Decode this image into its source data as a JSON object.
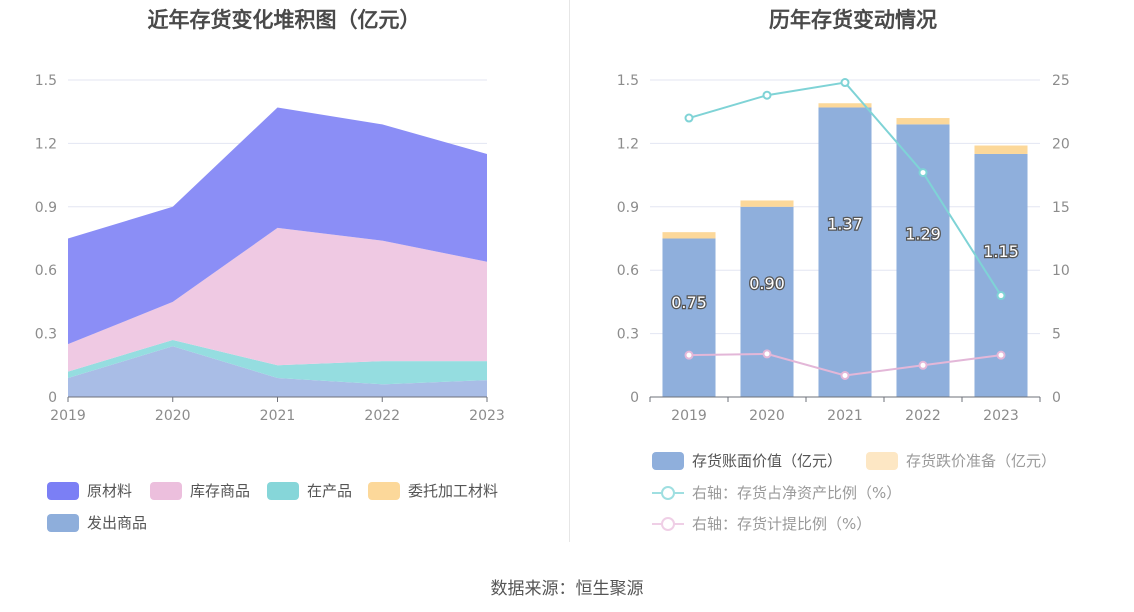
{
  "left_chart": {
    "title": "近年存货变化堆积图（亿元）",
    "legend": [
      "原材料",
      "库存商品",
      "在产品",
      "委托加工材料",
      "发出商品"
    ],
    "colors": {
      "原材料": "#8b8ef6",
      "库存商品": "#efc9e3",
      "在产品": "#95dde0",
      "委托加工材料": "#fcd89a",
      "发出商品": "#a9bde6"
    }
  },
  "right_chart": {
    "title": "历年存货变动情况",
    "legend": [
      "存货账面价值（亿元）",
      "存货跌价准备（亿元）",
      "右轴：存货占净资产比例（%）",
      "右轴：存货计提比例（%）"
    ],
    "colors": {
      "book": "#8fafdc",
      "provision": "#fcd89a",
      "ratio_net_assets": "#7fd3d6",
      "provision_ratio": "#e3b7d8"
    }
  },
  "chart_data": [
    {
      "type": "area",
      "title": "近年存货变化堆积图（亿元）",
      "stacked": true,
      "categories": [
        "2019",
        "2020",
        "2021",
        "2022",
        "2023"
      ],
      "ylim": [
        0,
        1.5
      ],
      "yticks": [
        "0",
        "0.3",
        "0.6",
        "0.9",
        "1.2",
        "1.5"
      ],
      "series": [
        {
          "name": "发出商品",
          "values": [
            0.09,
            0.24,
            0.09,
            0.06,
            0.08
          ]
        },
        {
          "name": "委托加工材料",
          "values": [
            0.0,
            0.0,
            0.0,
            0.0,
            0.0
          ]
        },
        {
          "name": "在产品",
          "values": [
            0.03,
            0.03,
            0.06,
            0.11,
            0.09
          ]
        },
        {
          "name": "库存商品",
          "values": [
            0.13,
            0.18,
            0.65,
            0.57,
            0.47
          ]
        },
        {
          "name": "原材料",
          "values": [
            0.5,
            0.45,
            0.57,
            0.55,
            0.51
          ]
        }
      ],
      "legend_position": "bottom",
      "grid": true
    },
    {
      "type": "bar",
      "title": "历年存货变动情况",
      "categories": [
        "2019",
        "2020",
        "2021",
        "2022",
        "2023"
      ],
      "ylim": [
        0,
        1.5
      ],
      "yticks": [
        "0",
        "0.3",
        "0.6",
        "0.9",
        "1.2",
        "1.5"
      ],
      "y2lim": [
        0,
        25
      ],
      "y2ticks": [
        "0",
        "5",
        "10",
        "15",
        "20",
        "25"
      ],
      "series": [
        {
          "name": "存货账面价值（亿元）",
          "values": [
            0.75,
            0.9,
            1.37,
            1.29,
            1.15
          ],
          "labels": [
            "0.75",
            "0.90",
            "1.37",
            "1.29",
            "1.15"
          ]
        },
        {
          "name": "存货跌价准备（亿元）",
          "values": [
            0.03,
            0.03,
            0.02,
            0.03,
            0.04
          ]
        },
        {
          "name": "右轴：存货占净资产比例（%）",
          "type": "line",
          "axis": "right",
          "values": [
            22.0,
            23.8,
            24.8,
            17.7,
            8.0
          ]
        },
        {
          "name": "右轴：存货计提比例（%）",
          "type": "line",
          "axis": "right",
          "values": [
            3.3,
            3.4,
            1.7,
            2.5,
            3.3
          ]
        }
      ],
      "legend_position": "bottom",
      "grid": true
    }
  ],
  "footer": {
    "source": "数据来源：恒生聚源"
  }
}
